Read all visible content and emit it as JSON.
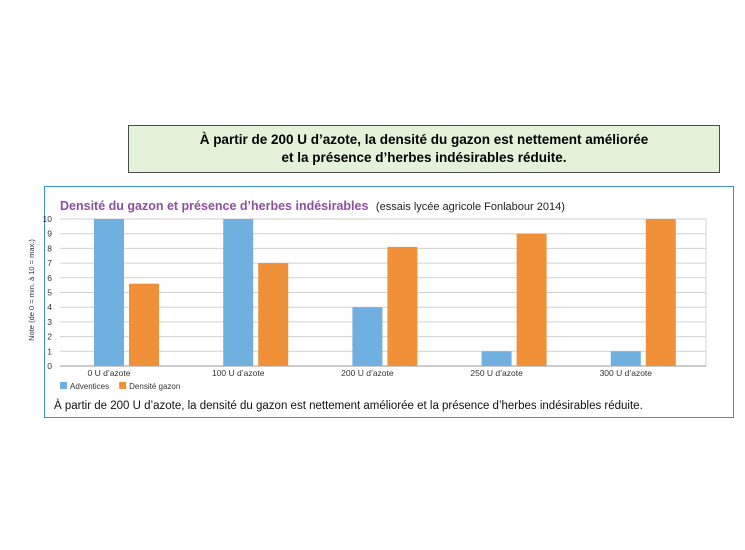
{
  "banner": {
    "line1": "À partir de 200 U d’azote, la densité du gazon est nettement améliorée",
    "line2": "et la présence d’herbes indésirables réduite."
  },
  "caption": "À partir de 200 U d’azote, la densité du gazon est nettement améliorée et la présence d’herbes indésirables réduite.",
  "colors": {
    "adventices": "#6fb0e0",
    "densite": "#f0913a",
    "title": "#8e4fa3",
    "panel_border": "#3d8fd0",
    "banner_bg": "#e3f2d9"
  },
  "chart_data": {
    "type": "bar",
    "title": "Densité du gazon et présence d’herbes indésirables",
    "subtitle": "(essais lycée agricole Fonlabour 2014)",
    "xlabel": "",
    "ylabel": "Note (de 0 = min. à 10 = max.)",
    "ylim": [
      0,
      10
    ],
    "yticks": [
      "0",
      "1",
      "2",
      "3",
      "4",
      "5",
      "6",
      "7",
      "8",
      "9",
      "10"
    ],
    "grid": true,
    "legend_position": "bottom-left",
    "categories": [
      "0 U d’azote",
      "100 U d’azote",
      "200 U d’azote",
      "250 U d’azote",
      "300 U d’azote"
    ],
    "series": [
      {
        "name": "Adventices",
        "values": [
          10,
          10,
          4,
          1,
          1
        ]
      },
      {
        "name": "Densité gazon",
        "values": [
          5.6,
          7,
          8.1,
          9,
          10
        ]
      }
    ]
  }
}
